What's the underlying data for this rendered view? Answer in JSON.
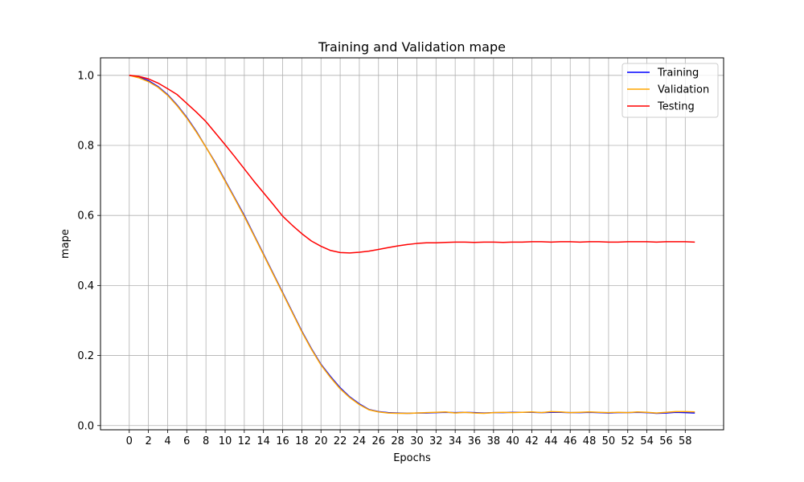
{
  "chart_data": {
    "type": "line",
    "title": "Training and Validation mape",
    "xlabel": "Epochs",
    "ylabel": "mape",
    "xlim": [
      -3,
      62
    ],
    "ylim": [
      -0.012,
      1.05
    ],
    "x_ticks": [
      0,
      2,
      4,
      6,
      8,
      10,
      12,
      14,
      16,
      18,
      20,
      22,
      24,
      26,
      28,
      30,
      32,
      34,
      36,
      38,
      40,
      42,
      44,
      46,
      48,
      50,
      52,
      54,
      56,
      58
    ],
    "y_ticks": [
      "0.0",
      "0.2",
      "0.4",
      "0.6",
      "0.8",
      "1.0"
    ],
    "grid": true,
    "legend_position": "top-right",
    "x": [
      0,
      1,
      2,
      3,
      4,
      5,
      6,
      7,
      8,
      9,
      10,
      11,
      12,
      13,
      14,
      15,
      16,
      17,
      18,
      19,
      20,
      21,
      22,
      23,
      24,
      25,
      26,
      27,
      28,
      29,
      30,
      31,
      32,
      33,
      34,
      35,
      36,
      37,
      38,
      39,
      40,
      41,
      42,
      43,
      44,
      45,
      46,
      47,
      48,
      49,
      50,
      51,
      52,
      53,
      54,
      55,
      56,
      57,
      58,
      59
    ],
    "series": [
      {
        "name": "Training",
        "color": "#0000ff",
        "values": [
          1.0,
          0.995,
          0.985,
          0.968,
          0.945,
          0.915,
          0.88,
          0.84,
          0.795,
          0.75,
          0.7,
          0.65,
          0.6,
          0.545,
          0.49,
          0.435,
          0.38,
          0.325,
          0.27,
          0.22,
          0.175,
          0.14,
          0.108,
          0.082,
          0.062,
          0.046,
          0.04,
          0.037,
          0.036,
          0.035,
          0.036,
          0.036,
          0.037,
          0.038,
          0.037,
          0.038,
          0.037,
          0.036,
          0.037,
          0.037,
          0.038,
          0.038,
          0.038,
          0.037,
          0.038,
          0.038,
          0.037,
          0.037,
          0.038,
          0.037,
          0.036,
          0.037,
          0.037,
          0.038,
          0.037,
          0.035,
          0.036,
          0.038,
          0.037,
          0.036
        ]
      },
      {
        "name": "Validation",
        "color": "#ffa500",
        "values": [
          1.0,
          0.993,
          0.982,
          0.966,
          0.943,
          0.913,
          0.878,
          0.838,
          0.795,
          0.748,
          0.698,
          0.648,
          0.597,
          0.543,
          0.488,
          0.433,
          0.378,
          0.323,
          0.268,
          0.218,
          0.173,
          0.137,
          0.105,
          0.08,
          0.06,
          0.045,
          0.039,
          0.036,
          0.035,
          0.035,
          0.036,
          0.037,
          0.038,
          0.039,
          0.036,
          0.038,
          0.036,
          0.035,
          0.037,
          0.038,
          0.037,
          0.038,
          0.039,
          0.037,
          0.04,
          0.039,
          0.037,
          0.038,
          0.039,
          0.038,
          0.037,
          0.038,
          0.037,
          0.039,
          0.038,
          0.036,
          0.038,
          0.04,
          0.04,
          0.039
        ]
      },
      {
        "name": "Testing",
        "color": "#ff0000",
        "values": [
          1.0,
          0.997,
          0.99,
          0.978,
          0.962,
          0.945,
          0.92,
          0.895,
          0.868,
          0.835,
          0.802,
          0.768,
          0.733,
          0.698,
          0.665,
          0.632,
          0.598,
          0.572,
          0.548,
          0.527,
          0.512,
          0.5,
          0.494,
          0.493,
          0.495,
          0.498,
          0.503,
          0.508,
          0.513,
          0.517,
          0.52,
          0.522,
          0.522,
          0.523,
          0.524,
          0.524,
          0.523,
          0.524,
          0.524,
          0.523,
          0.524,
          0.524,
          0.525,
          0.525,
          0.524,
          0.525,
          0.525,
          0.524,
          0.525,
          0.525,
          0.524,
          0.524,
          0.525,
          0.525,
          0.525,
          0.524,
          0.525,
          0.525,
          0.525,
          0.524
        ]
      }
    ]
  }
}
